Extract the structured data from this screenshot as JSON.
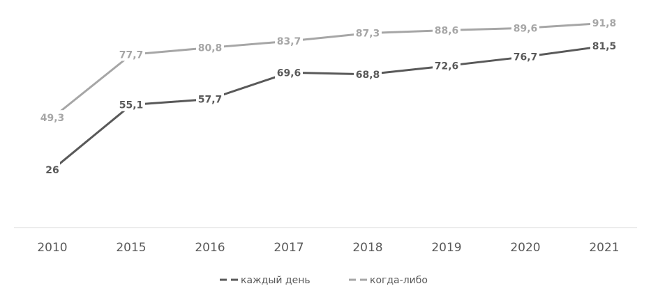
{
  "chart_data": {
    "type": "line",
    "title": "",
    "xlabel": "",
    "ylabel": "",
    "categories": [
      "2010",
      "2015",
      "2016",
      "2017",
      "2018",
      "2019",
      "2020",
      "2021"
    ],
    "ylim": [
      0,
      100
    ],
    "grid": false,
    "legend_position": "bottom",
    "series": [
      {
        "name": "каждый день",
        "color": "#595959",
        "values": [
          26,
          55.1,
          57.7,
          69.6,
          68.8,
          72.6,
          76.7,
          81.5
        ],
        "labels": [
          "26",
          "55,1",
          "57,7",
          "69,6",
          "68,8",
          "72,6",
          "76,7",
          "81,5"
        ]
      },
      {
        "name": "когда-либо",
        "color": "#a6a6a6",
        "values": [
          49.3,
          77.7,
          80.8,
          83.7,
          87.3,
          88.6,
          89.6,
          91.8
        ],
        "labels": [
          "49,3",
          "77,7",
          "80,8",
          "83,7",
          "87,3",
          "88,6",
          "89,6",
          "91,8"
        ]
      }
    ]
  }
}
